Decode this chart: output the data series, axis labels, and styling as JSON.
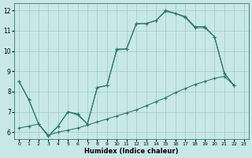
{
  "xlabel": "Humidex (Indice chaleur)",
  "bg_color": "#c8e8e8",
  "grid_color": "#a0c8c8",
  "line_color": "#2a7a6a",
  "xlim_min": -0.5,
  "xlim_max": 23.5,
  "ylim_min": 5.65,
  "ylim_max": 12.35,
  "xticks": [
    0,
    1,
    2,
    3,
    4,
    5,
    6,
    7,
    8,
    9,
    10,
    11,
    12,
    13,
    14,
    15,
    16,
    17,
    18,
    19,
    20,
    21,
    22,
    23
  ],
  "yticks": [
    6,
    7,
    8,
    9,
    10,
    11,
    12
  ],
  "curve1_x": [
    0,
    1,
    2,
    3,
    4,
    5,
    6,
    7,
    8,
    9,
    10,
    11,
    12,
    13,
    14,
    15,
    16,
    17,
    18,
    19,
    20,
    21,
    22
  ],
  "curve1_y": [
    8.5,
    7.6,
    6.4,
    5.8,
    6.3,
    7.0,
    6.9,
    6.4,
    8.2,
    8.3,
    10.1,
    10.1,
    11.35,
    11.35,
    11.5,
    12.0,
    11.85,
    11.65,
    11.15,
    11.15,
    10.7,
    8.9,
    8.3
  ],
  "curve2_x": [
    0,
    1,
    2,
    3,
    4,
    5,
    6,
    7,
    8,
    9,
    10,
    11,
    12,
    13,
    14,
    15,
    16,
    17,
    18,
    19,
    20,
    21,
    22
  ],
  "curve2_y": [
    8.5,
    7.6,
    6.4,
    5.8,
    6.3,
    7.0,
    6.85,
    6.4,
    8.2,
    8.3,
    10.05,
    10.1,
    11.35,
    11.35,
    11.5,
    11.95,
    11.85,
    11.7,
    11.2,
    11.2,
    10.7,
    8.9,
    8.3
  ],
  "curve3_x": [
    0,
    1,
    2,
    3,
    4,
    5,
    6,
    7,
    8,
    9,
    10,
    11,
    12,
    13,
    14,
    15,
    16,
    17,
    18,
    19,
    20,
    21,
    22
  ],
  "curve3_y": [
    6.2,
    6.3,
    6.4,
    5.85,
    6.0,
    6.1,
    6.2,
    6.35,
    6.5,
    6.65,
    6.8,
    6.95,
    7.1,
    7.3,
    7.5,
    7.7,
    7.95,
    8.15,
    8.35,
    8.5,
    8.65,
    8.75,
    8.3
  ]
}
